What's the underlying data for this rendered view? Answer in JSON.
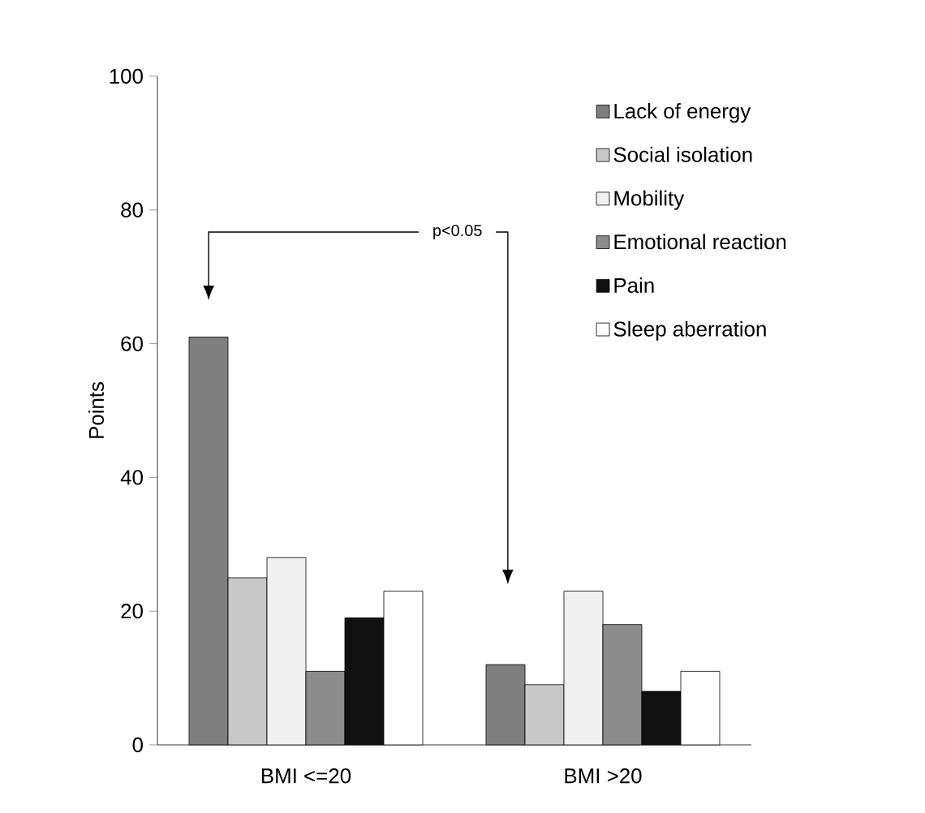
{
  "chart_data": {
    "type": "bar",
    "ylabel": "Points",
    "categories": [
      "BMI <=20",
      "BMI >20"
    ],
    "series": [
      {
        "name": "Lack of energy",
        "color": "#7f7f7f",
        "values": [
          61,
          12
        ]
      },
      {
        "name": "Social isolation",
        "color": "#c8c8c8",
        "values": [
          25,
          9
        ]
      },
      {
        "name": "Mobility",
        "color": "#f0f0f0",
        "values": [
          28,
          23
        ]
      },
      {
        "name": "Emotional reaction",
        "color": "#8c8c8c",
        "values": [
          11,
          18
        ]
      },
      {
        "name": "Pain",
        "color": "#111111",
        "values": [
          19,
          8
        ]
      },
      {
        "name": "Sleep aberration",
        "color": "#ffffff",
        "values": [
          23,
          11
        ]
      }
    ],
    "ylim": [
      0,
      100
    ],
    "yticks": [
      0,
      20,
      40,
      60,
      80,
      100
    ],
    "grid": false,
    "legend": "top right",
    "annotations": [
      "p<0.05"
    ]
  }
}
